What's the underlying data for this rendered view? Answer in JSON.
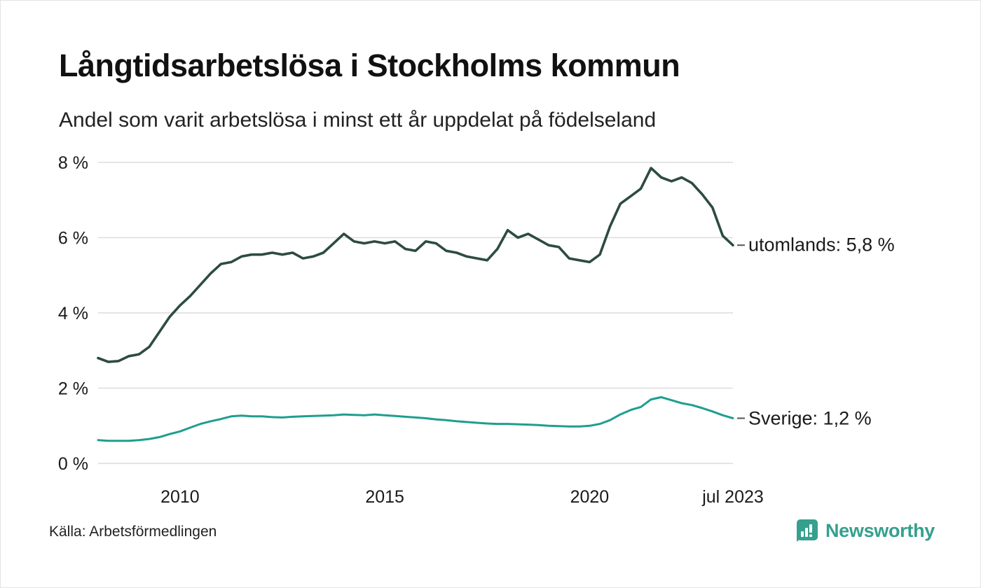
{
  "title": "Långtidsarbetslösa i Stockholms kommun",
  "subtitle": "Andel som varit arbetslösa i minst ett år uppdelat på födelseland",
  "source": "Källa: Arbetsförmedlingen",
  "brand": {
    "name": "Newsworthy",
    "color": "#35a08e"
  },
  "chart_data": {
    "type": "line",
    "title": "Långtidsarbetslösa i Stockholms kommun",
    "subtitle": "Andel som varit arbetslösa i minst ett år uppdelat på födelseland",
    "xlabel": "",
    "ylabel": "",
    "xlim": [
      2008.0,
      2023.5
    ],
    "ylim": [
      0,
      8
    ],
    "grid": "horizontal",
    "grid_color": "#dcdcdc",
    "legend_position": "end-of-line",
    "yticks": [
      0,
      2,
      4,
      6,
      8
    ],
    "ytick_labels": [
      "0 %",
      "2 %",
      "4 %",
      "6 %",
      "8 %"
    ],
    "xticks": [
      {
        "value": 2010,
        "label": "2010"
      },
      {
        "value": 2015,
        "label": "2015"
      },
      {
        "value": 2020,
        "label": "2020"
      },
      {
        "value": 2023.5,
        "label": "jul 2023"
      }
    ],
    "x": [
      2008.0,
      2008.25,
      2008.5,
      2008.75,
      2009.0,
      2009.25,
      2009.5,
      2009.75,
      2010.0,
      2010.25,
      2010.5,
      2010.75,
      2011.0,
      2011.25,
      2011.5,
      2011.75,
      2012.0,
      2012.25,
      2012.5,
      2012.75,
      2013.0,
      2013.25,
      2013.5,
      2013.75,
      2014.0,
      2014.25,
      2014.5,
      2014.75,
      2015.0,
      2015.25,
      2015.5,
      2015.75,
      2016.0,
      2016.25,
      2016.5,
      2016.75,
      2017.0,
      2017.25,
      2017.5,
      2017.75,
      2018.0,
      2018.25,
      2018.5,
      2018.75,
      2019.0,
      2019.25,
      2019.5,
      2019.75,
      2020.0,
      2020.25,
      2020.5,
      2020.75,
      2021.0,
      2021.25,
      2021.5,
      2021.75,
      2022.0,
      2022.25,
      2022.5,
      2022.75,
      2023.0,
      2023.25,
      2023.5
    ],
    "series": [
      {
        "name": "utomlands",
        "label": "utomlands: 5,8 %",
        "final_value": "5,8 %",
        "color": "#2d4b43",
        "values": [
          2.8,
          2.7,
          2.72,
          2.85,
          2.9,
          3.1,
          3.5,
          3.9,
          4.2,
          4.45,
          4.75,
          5.05,
          5.3,
          5.35,
          5.5,
          5.55,
          5.55,
          5.6,
          5.55,
          5.6,
          5.45,
          5.5,
          5.6,
          5.85,
          6.1,
          5.9,
          5.85,
          5.9,
          5.85,
          5.9,
          5.7,
          5.65,
          5.9,
          5.85,
          5.65,
          5.6,
          5.5,
          5.45,
          5.4,
          5.7,
          6.2,
          6.0,
          6.1,
          5.95,
          5.8,
          5.75,
          5.45,
          5.4,
          5.35,
          5.55,
          6.3,
          6.9,
          7.1,
          7.3,
          7.85,
          7.6,
          7.5,
          7.6,
          7.45,
          7.15,
          6.8,
          6.05,
          5.8
        ]
      },
      {
        "name": "Sverige",
        "label": "Sverige: 1,2 %",
        "final_value": "1,2 %",
        "color": "#1f9e8e",
        "values": [
          0.62,
          0.6,
          0.6,
          0.6,
          0.62,
          0.65,
          0.7,
          0.78,
          0.85,
          0.95,
          1.05,
          1.12,
          1.18,
          1.25,
          1.27,
          1.25,
          1.25,
          1.23,
          1.22,
          1.24,
          1.25,
          1.26,
          1.27,
          1.28,
          1.3,
          1.29,
          1.28,
          1.3,
          1.28,
          1.26,
          1.24,
          1.22,
          1.2,
          1.17,
          1.15,
          1.12,
          1.1,
          1.08,
          1.06,
          1.05,
          1.05,
          1.04,
          1.03,
          1.02,
          1.0,
          0.99,
          0.98,
          0.98,
          1.0,
          1.05,
          1.15,
          1.3,
          1.42,
          1.5,
          1.7,
          1.76,
          1.68,
          1.6,
          1.55,
          1.47,
          1.38,
          1.28,
          1.2
        ]
      }
    ]
  }
}
